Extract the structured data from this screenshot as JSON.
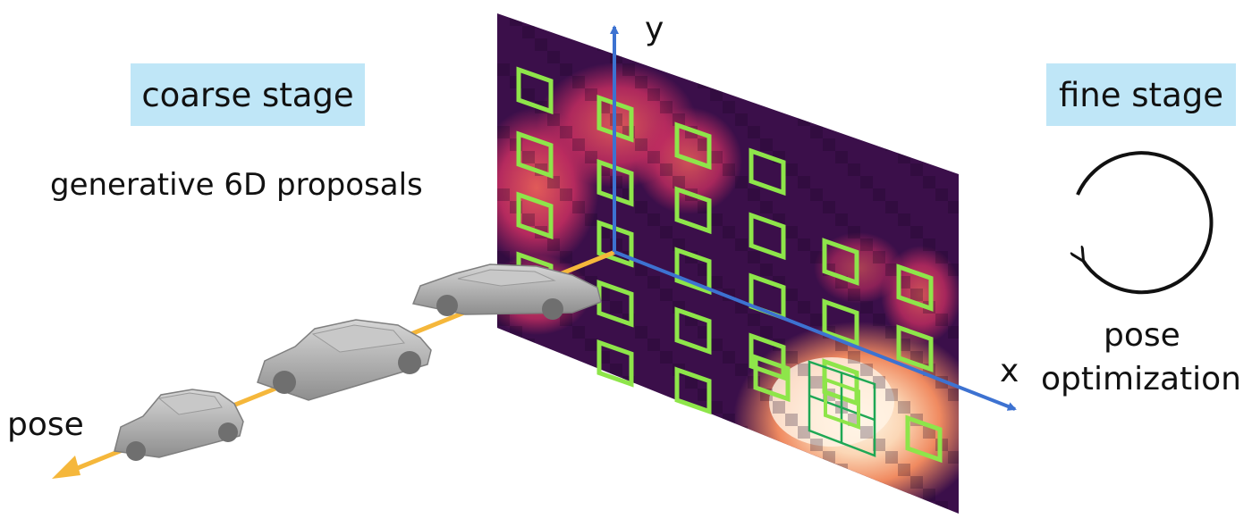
{
  "coarse_stage": {
    "label": "coarse stage",
    "subtitle": "generative 6D proposals"
  },
  "fine_stage": {
    "label": "fine stage",
    "caption_line1": "pose",
    "caption_line2": "optimization"
  },
  "axes": {
    "y_label": "y",
    "x_label": "x",
    "pose_label": "pose"
  },
  "colors": {
    "label_bg": "#bfe6f7",
    "axis_blue": "#3d72d1",
    "pose_axis": "#f5b73b",
    "proposal_box": "#8ee54a",
    "refine_box": "#1fa855",
    "car_body": "#a9a9a9"
  },
  "icons": [
    "refresh-cycle-icon",
    "car-icon"
  ]
}
